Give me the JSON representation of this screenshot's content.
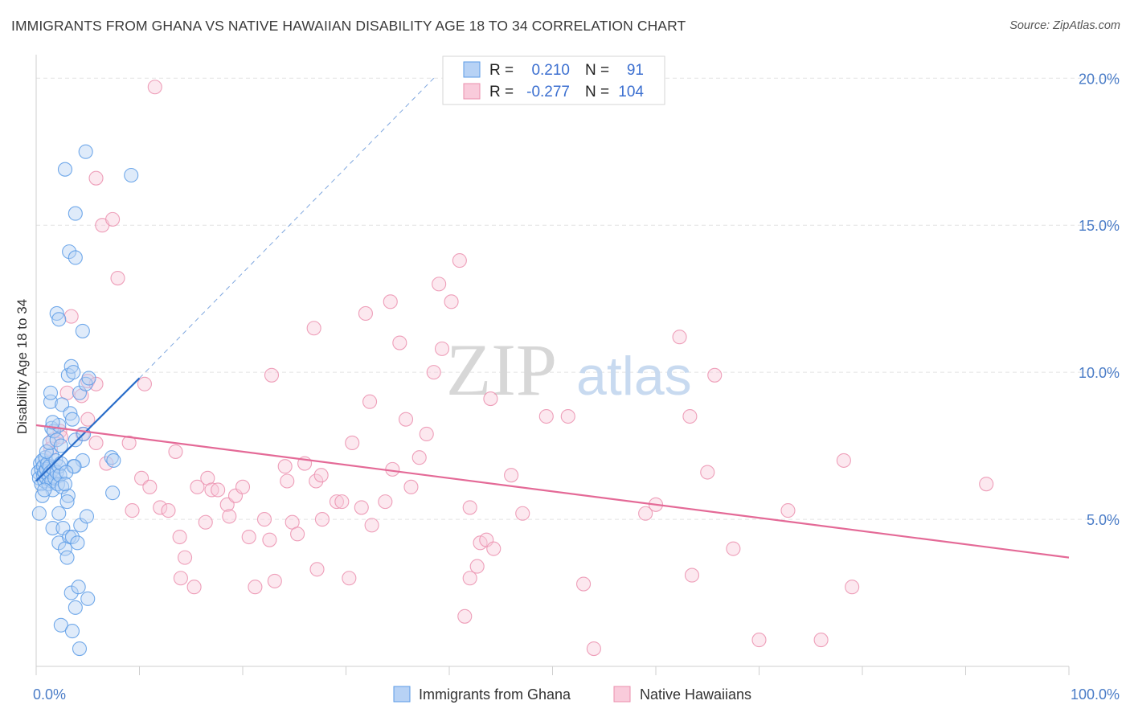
{
  "title": "IMMIGRANTS FROM GHANA VS NATIVE HAWAIIAN DISABILITY AGE 18 TO 34 CORRELATION CHART",
  "source": "Source: ZipAtlas.com",
  "watermark": {
    "zip": "ZIP",
    "atlas": "atlas"
  },
  "colors": {
    "blue": "#5b9be6",
    "blue_line": "#2a6dc9",
    "blue_fill": "#b7d2f5",
    "pink": "#eb8fae",
    "pink_line": "#e46a97",
    "pink_fill": "#f9cbdb",
    "grid": "#e4e4e4",
    "tick_text": "#4a7cc7"
  },
  "stats": {
    "row1": {
      "r_label": "R =",
      "r_value": "0.210",
      "n_label": "N =",
      "n_value": "91"
    },
    "row2": {
      "r_label": "R =",
      "r_value": "-0.277",
      "n_label": "N =",
      "n_value": "104"
    }
  },
  "legend": {
    "ghana": "Immigrants from Ghana",
    "hawaiian": "Native Hawaiians"
  },
  "chart_data": {
    "type": "scatter",
    "xlabel": "",
    "ylabel": "Disability Age 18 to 34",
    "xlim": [
      0,
      100
    ],
    "ylim": [
      0,
      20.8
    ],
    "x_tick_labels": [
      {
        "v": 0,
        "label": "0.0%"
      },
      {
        "v": 100,
        "label": "100.0%"
      }
    ],
    "y_tick_labels": [
      {
        "v": 5,
        "label": "5.0%"
      },
      {
        "v": 10,
        "label": "10.0%"
      },
      {
        "v": 15,
        "label": "15.0%"
      },
      {
        "v": 20,
        "label": "20.0%"
      }
    ],
    "grid": true,
    "legend_position": "bottom-center",
    "series": [
      {
        "name": "Immigrants from Ghana",
        "color": "#5b9be6",
        "trend": {
          "x": [
            0,
            10
          ],
          "y": [
            6.3,
            9.8
          ],
          "dashed_to": {
            "x": 38.5,
            "y": 20.0
          }
        },
        "points": [
          [
            0.2,
            6.6
          ],
          [
            0.3,
            6.4
          ],
          [
            0.4,
            6.9
          ],
          [
            0.5,
            6.7
          ],
          [
            0.5,
            6.2
          ],
          [
            0.6,
            7.0
          ],
          [
            0.7,
            6.5
          ],
          [
            0.7,
            6.8
          ],
          [
            0.8,
            6.3
          ],
          [
            0.8,
            6.6
          ],
          [
            0.9,
            7.1
          ],
          [
            1.0,
            6.4
          ],
          [
            1.0,
            6.7
          ],
          [
            1.1,
            6.9
          ],
          [
            1.2,
            6.5
          ],
          [
            1.2,
            6.2
          ],
          [
            1.3,
            6.8
          ],
          [
            1.4,
            6.6
          ],
          [
            1.5,
            7.2
          ],
          [
            1.5,
            6.3
          ],
          [
            1.6,
            6.0
          ],
          [
            1.7,
            6.7
          ],
          [
            1.8,
            6.4
          ],
          [
            1.9,
            7.0
          ],
          [
            2.0,
            6.6
          ],
          [
            2.1,
            6.2
          ],
          [
            2.2,
            6.8
          ],
          [
            2.3,
            6.5
          ],
          [
            2.4,
            6.9
          ],
          [
            2.5,
            6.1
          ],
          [
            0.3,
            5.2
          ],
          [
            0.6,
            5.8
          ],
          [
            0.8,
            6.0
          ],
          [
            1.0,
            7.3
          ],
          [
            1.3,
            7.6
          ],
          [
            1.5,
            8.1
          ],
          [
            1.7,
            8.0
          ],
          [
            2.0,
            7.7
          ],
          [
            2.2,
            8.2
          ],
          [
            2.4,
            7.5
          ],
          [
            1.4,
            9.0
          ],
          [
            1.6,
            8.3
          ],
          [
            1.4,
            9.3
          ],
          [
            2.5,
            8.9
          ],
          [
            3.1,
            9.9
          ],
          [
            3.4,
            10.2
          ],
          [
            3.6,
            10.0
          ],
          [
            4.2,
            9.3
          ],
          [
            4.8,
            9.6
          ],
          [
            5.1,
            9.8
          ],
          [
            3.3,
            8.6
          ],
          [
            3.5,
            8.4
          ],
          [
            3.8,
            7.7
          ],
          [
            4.6,
            7.9
          ],
          [
            4.5,
            7.0
          ],
          [
            3.6,
            6.8
          ],
          [
            3.7,
            6.8
          ],
          [
            2.9,
            6.6
          ],
          [
            3.1,
            5.8
          ],
          [
            2.8,
            6.2
          ],
          [
            7.3,
            7.1
          ],
          [
            7.5,
            7.0
          ],
          [
            7.4,
            5.9
          ],
          [
            2.2,
            5.2
          ],
          [
            3.0,
            5.6
          ],
          [
            1.6,
            4.7
          ],
          [
            2.6,
            4.7
          ],
          [
            2.2,
            4.2
          ],
          [
            3.2,
            4.4
          ],
          [
            3.5,
            4.4
          ],
          [
            4.0,
            4.2
          ],
          [
            2.8,
            4.0
          ],
          [
            3.0,
            3.7
          ],
          [
            4.3,
            4.8
          ],
          [
            4.9,
            5.1
          ],
          [
            5.0,
            2.3
          ],
          [
            3.4,
            2.5
          ],
          [
            4.1,
            2.7
          ],
          [
            3.8,
            2.0
          ],
          [
            2.4,
            1.4
          ],
          [
            3.5,
            1.2
          ],
          [
            4.2,
            0.6
          ],
          [
            2.0,
            12.0
          ],
          [
            2.2,
            11.8
          ],
          [
            4.5,
            11.4
          ],
          [
            3.2,
            14.1
          ],
          [
            3.8,
            13.9
          ],
          [
            3.8,
            15.4
          ],
          [
            2.8,
            16.9
          ],
          [
            4.8,
            17.5
          ],
          [
            9.2,
            16.7
          ]
        ]
      },
      {
        "name": "Native Hawaiians",
        "color": "#eb8fae",
        "trend": {
          "x": [
            0,
            100
          ],
          "y": [
            8.2,
            3.7
          ]
        },
        "points": [
          [
            11.5,
            19.7
          ],
          [
            5.8,
            16.6
          ],
          [
            6.4,
            15.0
          ],
          [
            7.4,
            15.2
          ],
          [
            7.9,
            13.2
          ],
          [
            3.4,
            11.9
          ],
          [
            1.4,
            7.4
          ],
          [
            1.6,
            7.7
          ],
          [
            2.3,
            8.0
          ],
          [
            2.4,
            7.8
          ],
          [
            3.0,
            9.3
          ],
          [
            4.4,
            9.2
          ],
          [
            5.0,
            9.7
          ],
          [
            5.8,
            9.6
          ],
          [
            10.5,
            9.6
          ],
          [
            4.5,
            7.9
          ],
          [
            5.0,
            8.4
          ],
          [
            5.8,
            7.6
          ],
          [
            6.8,
            6.9
          ],
          [
            9.0,
            7.6
          ],
          [
            10.2,
            6.4
          ],
          [
            11.0,
            6.1
          ],
          [
            9.3,
            5.3
          ],
          [
            12.0,
            5.4
          ],
          [
            12.8,
            5.3
          ],
          [
            13.5,
            7.3
          ],
          [
            13.9,
            4.4
          ],
          [
            14.4,
            3.7
          ],
          [
            14.0,
            3.0
          ],
          [
            15.3,
            2.7
          ],
          [
            15.6,
            6.1
          ],
          [
            16.6,
            6.4
          ],
          [
            17.0,
            6.0
          ],
          [
            17.6,
            6.0
          ],
          [
            16.4,
            4.9
          ],
          [
            18.5,
            5.5
          ],
          [
            18.7,
            5.1
          ],
          [
            19.3,
            5.8
          ],
          [
            20.0,
            6.1
          ],
          [
            20.6,
            4.4
          ],
          [
            21.2,
            2.7
          ],
          [
            22.1,
            5.0
          ],
          [
            22.6,
            4.3
          ],
          [
            22.8,
            9.9
          ],
          [
            23.1,
            2.9
          ],
          [
            24.1,
            6.8
          ],
          [
            24.3,
            6.3
          ],
          [
            24.8,
            4.9
          ],
          [
            25.3,
            4.5
          ],
          [
            26.0,
            6.9
          ],
          [
            27.1,
            6.3
          ],
          [
            26.9,
            11.5
          ],
          [
            27.2,
            3.3
          ],
          [
            27.6,
            6.5
          ],
          [
            27.7,
            5.0
          ],
          [
            29.1,
            5.6
          ],
          [
            29.6,
            5.6
          ],
          [
            30.3,
            3.0
          ],
          [
            30.6,
            7.6
          ],
          [
            31.5,
            5.4
          ],
          [
            31.9,
            12.0
          ],
          [
            32.3,
            9.0
          ],
          [
            32.5,
            4.8
          ],
          [
            33.8,
            5.6
          ],
          [
            34.3,
            12.4
          ],
          [
            34.5,
            6.7
          ],
          [
            35.2,
            11.0
          ],
          [
            35.8,
            8.4
          ],
          [
            36.3,
            6.1
          ],
          [
            37.1,
            7.1
          ],
          [
            37.8,
            7.9
          ],
          [
            38.5,
            10.0
          ],
          [
            39.0,
            13.0
          ],
          [
            39.3,
            10.8
          ],
          [
            40.2,
            12.4
          ],
          [
            41.0,
            13.8
          ],
          [
            41.5,
            1.7
          ],
          [
            42.0,
            5.4
          ],
          [
            42.0,
            3.0
          ],
          [
            42.7,
            3.4
          ],
          [
            43.0,
            4.2
          ],
          [
            43.6,
            4.3
          ],
          [
            44.0,
            9.1
          ],
          [
            44.3,
            4.0
          ],
          [
            46.0,
            6.5
          ],
          [
            47.1,
            5.2
          ],
          [
            49.4,
            8.5
          ],
          [
            51.5,
            8.5
          ],
          [
            53.0,
            2.8
          ],
          [
            54.0,
            0.6
          ],
          [
            59.0,
            5.2
          ],
          [
            60.0,
            5.5
          ],
          [
            62.3,
            11.2
          ],
          [
            63.3,
            8.5
          ],
          [
            63.5,
            3.1
          ],
          [
            65.7,
            9.9
          ],
          [
            67.5,
            4.0
          ],
          [
            70.0,
            0.9
          ],
          [
            72.8,
            5.3
          ],
          [
            76.0,
            0.9
          ],
          [
            78.2,
            7.0
          ],
          [
            79.0,
            2.7
          ],
          [
            92.0,
            6.2
          ],
          [
            65.0,
            6.6
          ]
        ]
      }
    ]
  }
}
